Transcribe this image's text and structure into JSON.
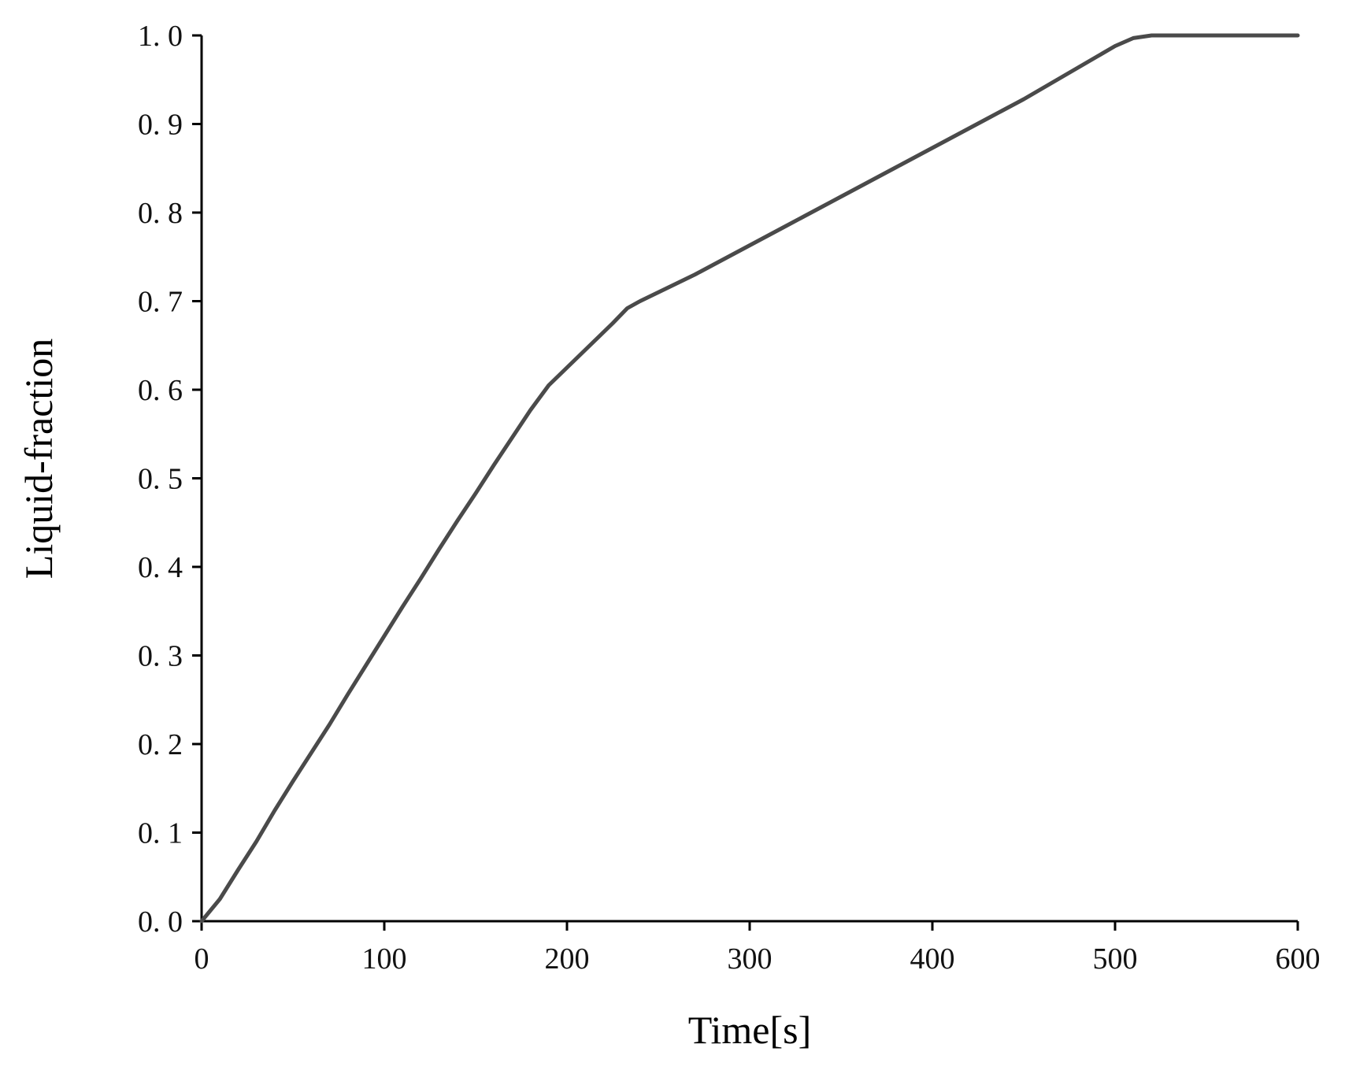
{
  "chart_data": {
    "type": "line",
    "title": "",
    "xlabel": "Time[s]",
    "ylabel": "Liquid-fraction",
    "xlim": [
      0,
      600
    ],
    "ylim": [
      0.0,
      1.0
    ],
    "x_ticks": [
      0,
      100,
      200,
      300,
      400,
      500,
      600
    ],
    "x_tick_labels": [
      "0",
      "100",
      "200",
      "300",
      "400",
      "500",
      "600"
    ],
    "y_ticks": [
      0.0,
      0.1,
      0.2,
      0.3,
      0.4,
      0.5,
      0.6,
      0.7,
      0.8,
      0.9,
      1.0
    ],
    "y_tick_labels": [
      "0. 0",
      "0. 1",
      "0. 2",
      "0. 3",
      "0. 4",
      "0. 5",
      "0. 6",
      "0. 7",
      "0. 8",
      "0. 9",
      "1. 0"
    ],
    "grid": false,
    "legend": "none",
    "line_color": "#4a4a4a",
    "series": [
      {
        "x": [
          0,
          10,
          20,
          30,
          40,
          50,
          60,
          70,
          80,
          90,
          100,
          110,
          120,
          130,
          140,
          150,
          160,
          170,
          180,
          190,
          200,
          210,
          220,
          225,
          233,
          240,
          250,
          260,
          270,
          280,
          290,
          300,
          310,
          320,
          330,
          340,
          350,
          360,
          370,
          380,
          390,
          400,
          410,
          420,
          430,
          440,
          450,
          460,
          470,
          480,
          490,
          500,
          510,
          520,
          530,
          540,
          560,
          580,
          600
        ],
        "y": [
          0.0,
          0.025,
          0.058,
          0.09,
          0.125,
          0.158,
          0.19,
          0.222,
          0.256,
          0.289,
          0.322,
          0.355,
          0.387,
          0.42,
          0.452,
          0.483,
          0.515,
          0.546,
          0.577,
          0.605,
          0.625,
          0.645,
          0.665,
          0.675,
          0.692,
          0.7,
          0.71,
          0.72,
          0.73,
          0.741,
          0.752,
          0.763,
          0.774,
          0.785,
          0.796,
          0.807,
          0.818,
          0.829,
          0.84,
          0.851,
          0.862,
          0.873,
          0.884,
          0.895,
          0.906,
          0.917,
          0.928,
          0.94,
          0.952,
          0.964,
          0.976,
          0.988,
          0.997,
          1.0,
          1.0,
          1.0,
          1.0,
          1.0,
          1.0
        ]
      }
    ]
  }
}
